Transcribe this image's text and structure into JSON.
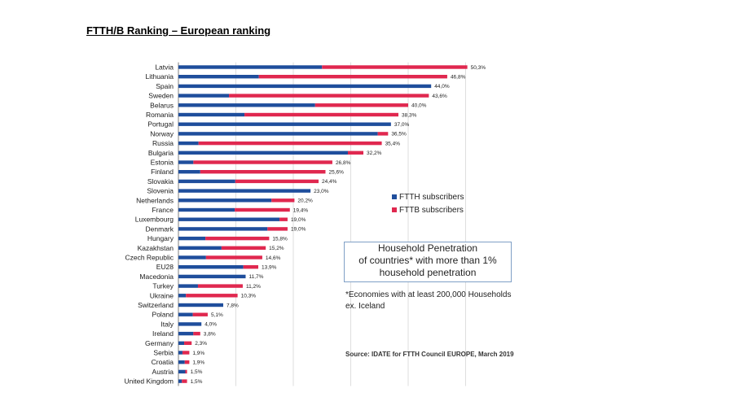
{
  "title": "FTTH/B Ranking – European ranking",
  "colors": {
    "ftth": "#1f4e9c",
    "fttb": "#e0284f",
    "grid": "#d6d6d6",
    "axis": "#7f7f7f"
  },
  "info_box": {
    "line1": "Household Penetration",
    "line2": "of countries* with more than 1%",
    "line3": "household penetration"
  },
  "note": {
    "line1": "*Economies with at least 200,000 Households",
    "line2": "ex. Iceland"
  },
  "source": "Source: IDATE for FTTH Council EUROPE, March 2019",
  "chart_data": {
    "type": "bar",
    "orientation": "horizontal",
    "stacked": true,
    "title": "FTTH/B Ranking – European ranking",
    "xlabel": "",
    "ylabel": "",
    "xlim": [
      0,
      56
    ],
    "grid": true,
    "legend_position": "middle-right",
    "categories": [
      "Latvia",
      "Lithuania",
      "Spain",
      "Sweden",
      "Belarus",
      "Romania",
      "Portugal",
      "Norway",
      "Russia",
      "Bulgaria",
      "Estonia",
      "Finland",
      "Slovakia",
      "Slovenia",
      "Netherlands",
      "France",
      "Luxembourg",
      "Denmark",
      "Hungary",
      "Kazakhstan",
      "Czech Republic",
      "EU28",
      "Macedonia",
      "Turkey",
      "Ukraine",
      "Switzerland",
      "Poland",
      "Italy",
      "Ireland",
      "Germany",
      "Serbia",
      "Croatia",
      "Austria",
      "United Kingdom"
    ],
    "series": [
      {
        "name": "FTTH subscribers",
        "values": [
          25.0,
          14.0,
          44.0,
          8.8,
          23.8,
          11.5,
          37.0,
          34.7,
          3.5,
          29.5,
          2.6,
          3.8,
          9.9,
          23.0,
          16.2,
          9.8,
          17.6,
          15.5,
          4.7,
          7.5,
          4.8,
          11.3,
          11.7,
          3.4,
          1.3,
          7.8,
          2.5,
          4.0,
          2.6,
          1.0,
          0.7,
          1.1,
          1.2,
          0.6
        ]
      },
      {
        "name": "FTTB subscribers",
        "values": [
          25.3,
          32.8,
          0.0,
          34.8,
          16.2,
          26.8,
          0.0,
          1.8,
          31.9,
          2.7,
          24.2,
          21.8,
          14.5,
          0.0,
          4.0,
          9.6,
          1.4,
          3.5,
          11.1,
          7.7,
          9.8,
          2.6,
          0.0,
          7.8,
          9.0,
          0.0,
          2.6,
          0.0,
          1.2,
          1.3,
          1.2,
          0.8,
          0.3,
          0.9
        ]
      }
    ],
    "totals_labels": [
      "50,3%",
      "46,8%",
      "44,0%",
      "43,6%",
      "40,0%",
      "38,3%",
      "37,0%",
      "36,5%",
      "35,4%",
      "32,2%",
      "26,8%",
      "25,6%",
      "24,4%",
      "23,0%",
      "20,2%",
      "19,4%",
      "19,0%",
      "19,0%",
      "15,8%",
      "15,2%",
      "14,6%",
      "13,9%",
      "11,7%",
      "11,2%",
      "10,3%",
      "7,8%",
      "5,1%",
      "4,0%",
      "3,8%",
      "2,3%",
      "1,9%",
      "1,9%",
      "1,5%",
      "1,5%"
    ]
  }
}
